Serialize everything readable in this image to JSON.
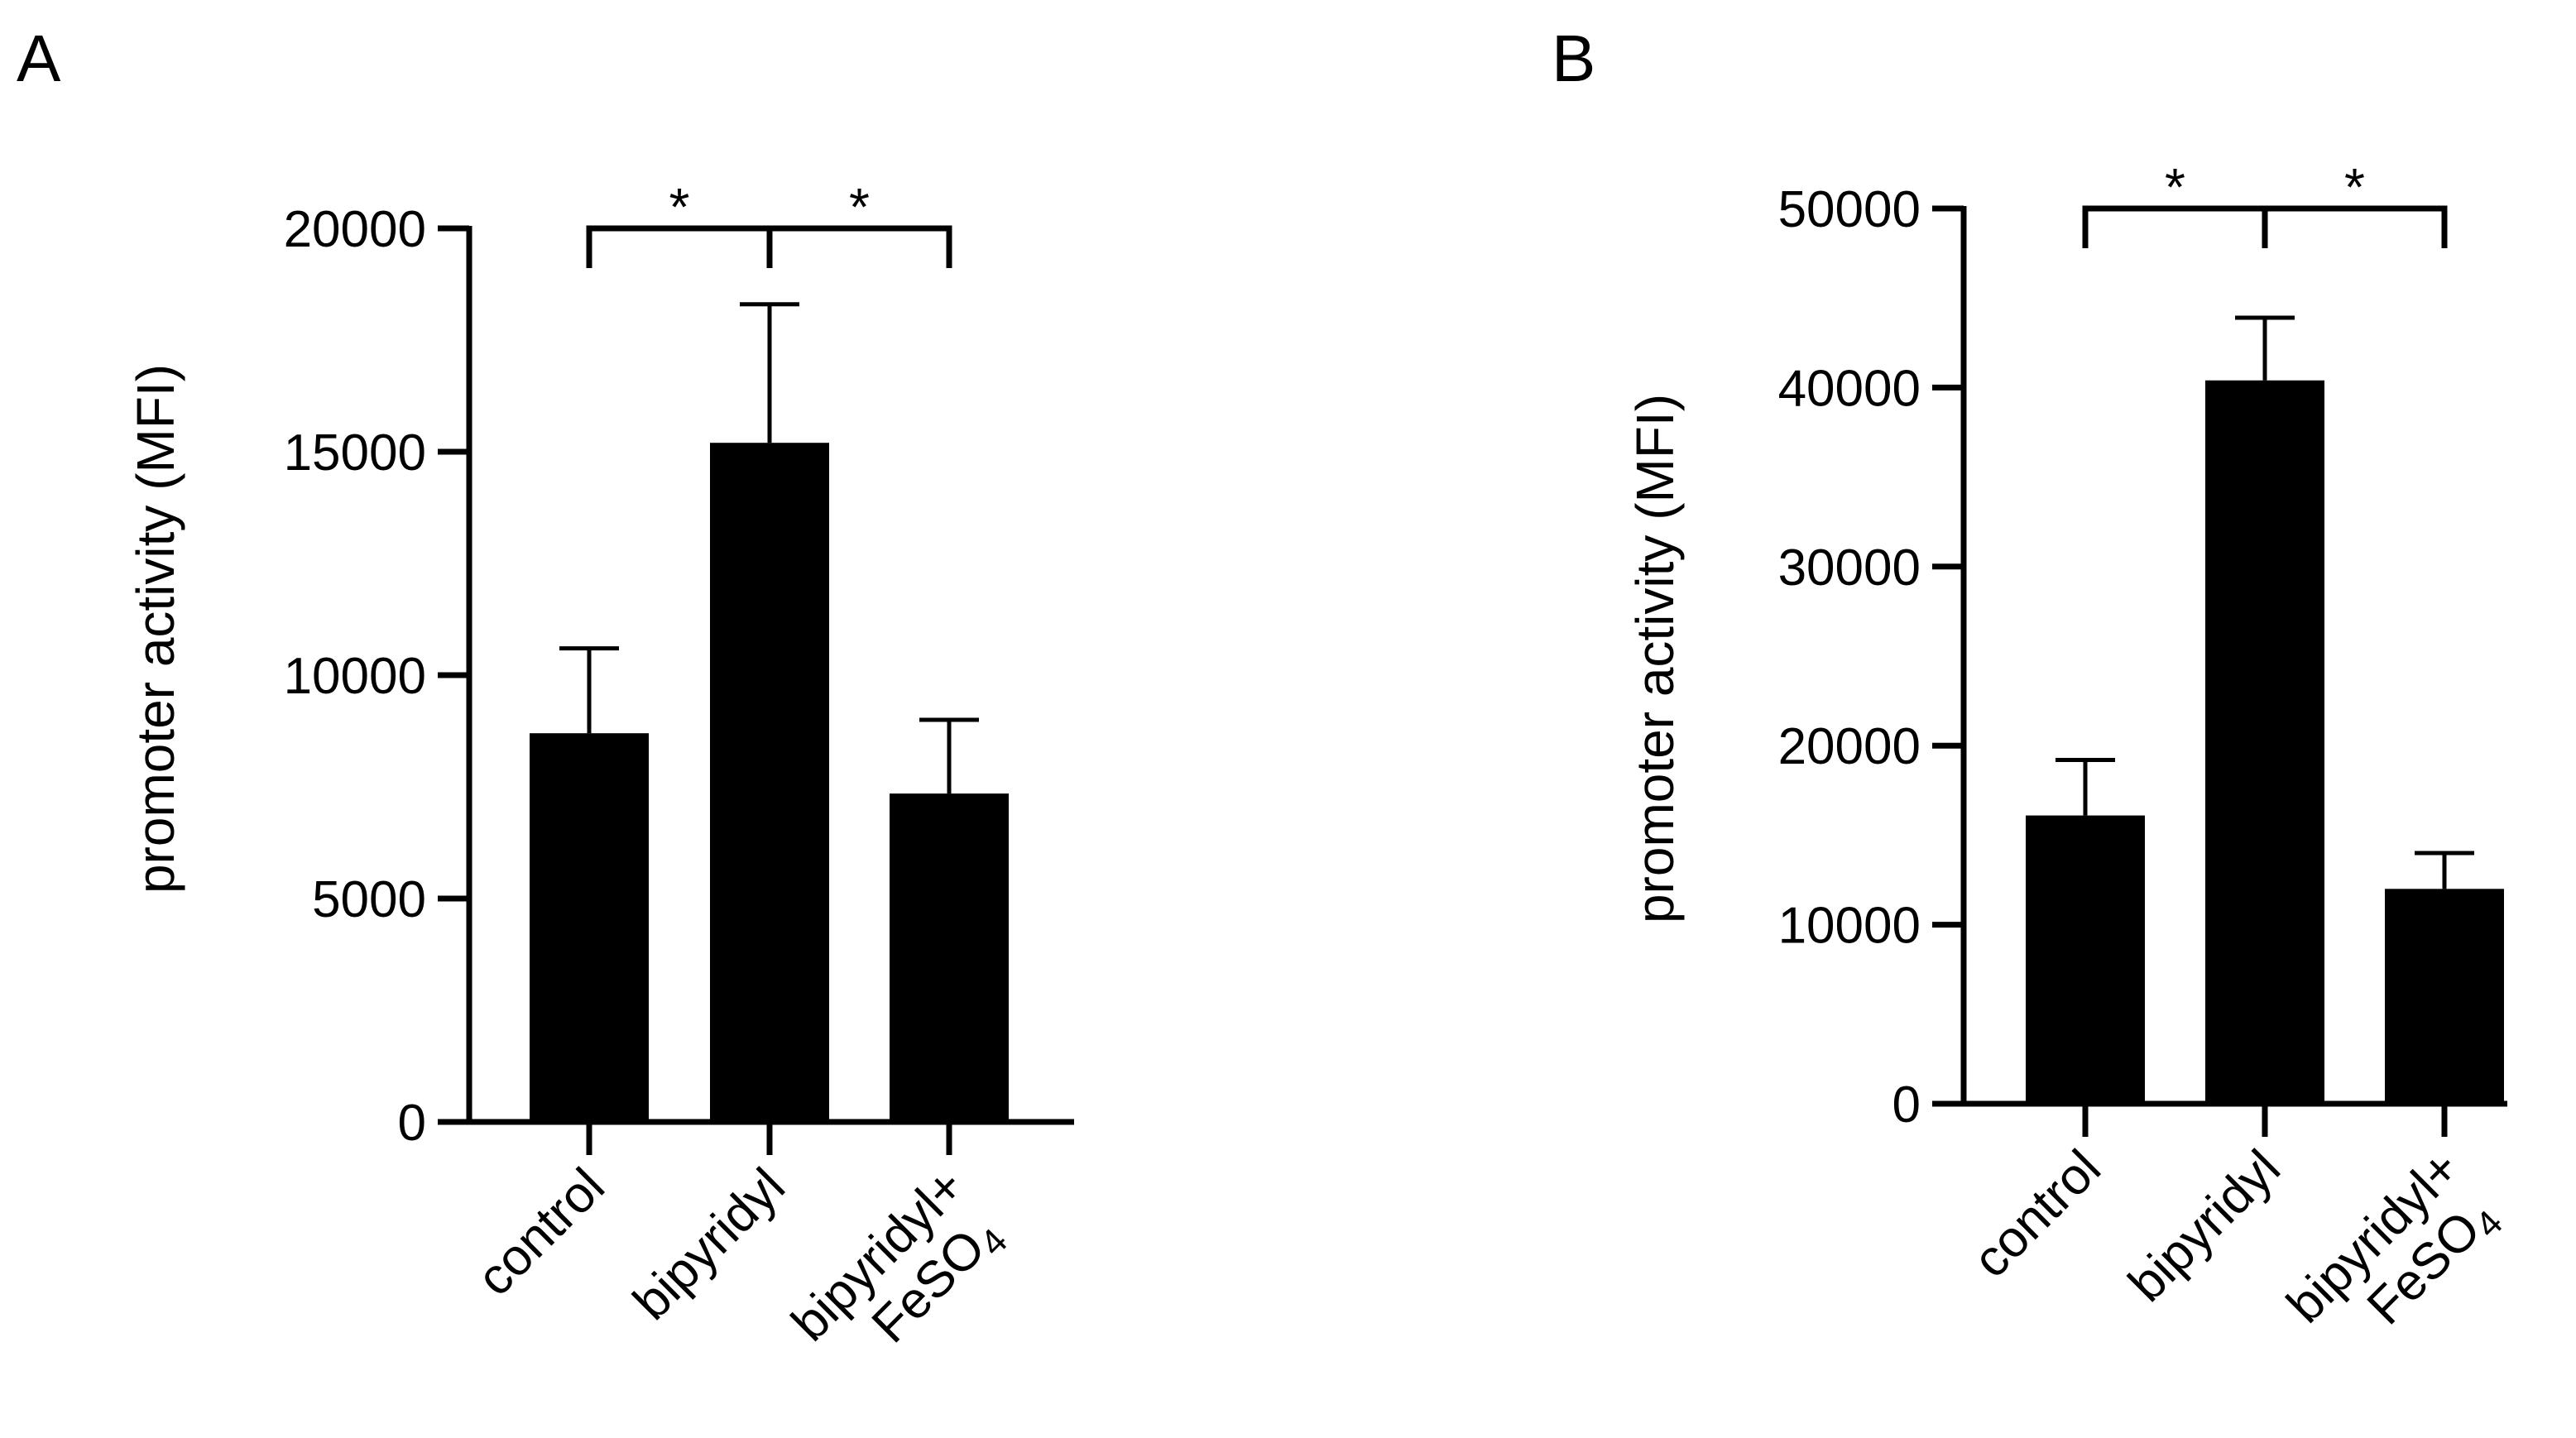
{
  "chart_data": [
    {
      "panel": "A",
      "type": "bar",
      "categories": [
        "control",
        "bipyridyl",
        "bipyridyl+ FeSO4"
      ],
      "category_lines": [
        [
          "control"
        ],
        [
          "bipyridyl"
        ],
        [
          "bipyridyl+",
          "FeSO",
          "4"
        ]
      ],
      "values": [
        8700,
        15200,
        7350
      ],
      "errors": [
        1900,
        3100,
        1650
      ],
      "ylabel": "promoter activity (MFI)",
      "xlabel": "",
      "ylim": [
        0,
        20000
      ],
      "yticks": [
        0,
        5000,
        10000,
        15000,
        20000
      ],
      "significance": [
        {
          "from": 0,
          "to": 1,
          "label": "*"
        },
        {
          "from": 1,
          "to": 2,
          "label": "*"
        }
      ],
      "bar_color": "#000000"
    },
    {
      "panel": "B",
      "type": "bar",
      "categories": [
        "control",
        "bipyridyl",
        "bipyridyl+ FeSO4"
      ],
      "category_lines": [
        [
          "control"
        ],
        [
          "bipyridyl"
        ],
        [
          "bipyridyl+",
          "FeSO",
          "4"
        ]
      ],
      "values": [
        16100,
        40400,
        12000
      ],
      "errors": [
        3100,
        3500,
        2000
      ],
      "ylabel": "promoter activity (MFI)",
      "xlabel": "",
      "ylim": [
        0,
        50000
      ],
      "yticks": [
        0,
        10000,
        20000,
        30000,
        40000,
        50000
      ],
      "significance": [
        {
          "from": 0,
          "to": 1,
          "label": "*"
        },
        {
          "from": 1,
          "to": 2,
          "label": "*"
        }
      ],
      "bar_color": "#000000"
    }
  ]
}
